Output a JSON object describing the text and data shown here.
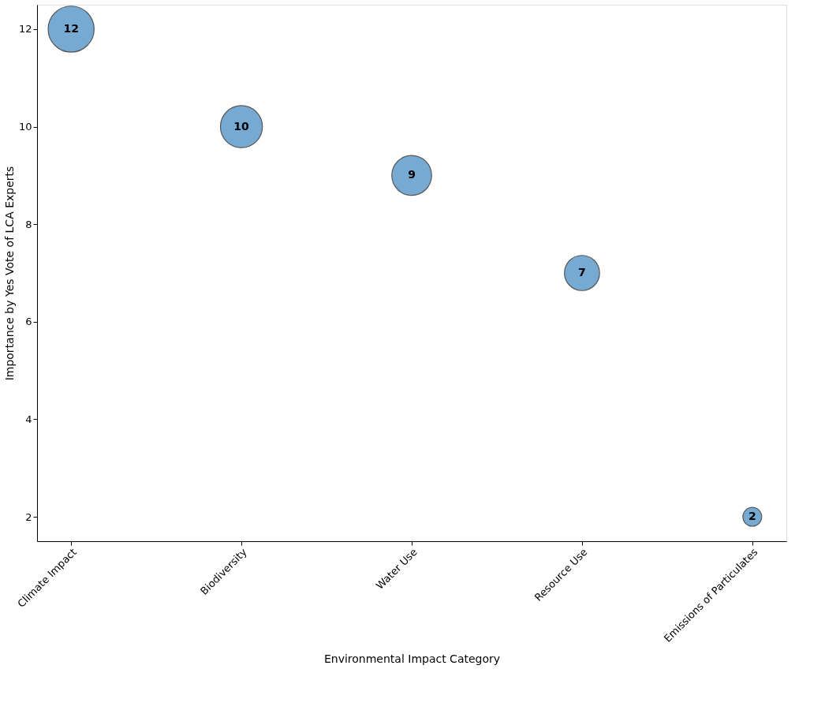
{
  "chart_data": {
    "type": "bubble",
    "xlabel": "Environmental Impact Category",
    "ylabel": "Importance by Yes Vote of LCA Experts",
    "categories": [
      "Climate Impact",
      "Biodiversity",
      "Water Use",
      "Resource Use",
      "Emissions of Particulates"
    ],
    "series": [
      {
        "color": "#77aad2",
        "values": [
          12,
          10,
          9,
          7,
          2
        ],
        "sizes": [
          1,
          0.833,
          0.75,
          0.583,
          0.167
        ]
      }
    ],
    "ylim": [
      1.5,
      12.5
    ],
    "yticks": [
      2,
      4,
      6,
      8,
      10,
      12
    ],
    "data_labels": true,
    "grid": false
  }
}
